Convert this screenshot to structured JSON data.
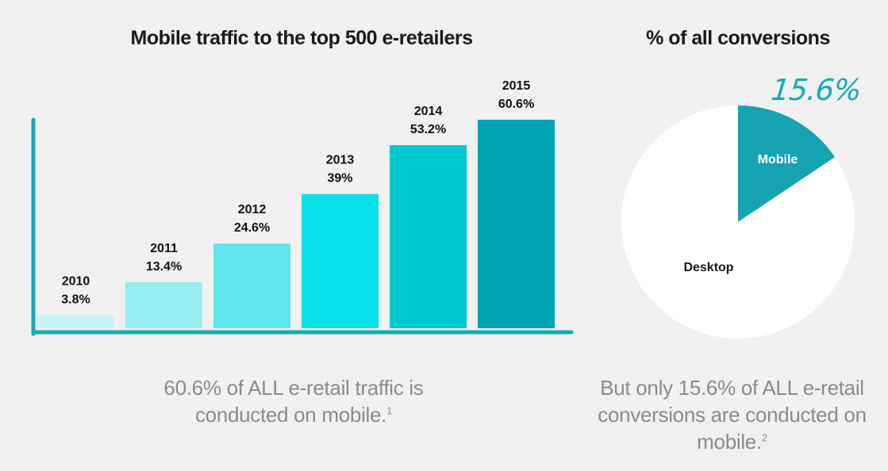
{
  "chart_data": [
    {
      "type": "bar",
      "title": "Mobile traffic to the top 500 e-retailers",
      "categories": [
        "2010",
        "2011",
        "2012",
        "2013",
        "2014",
        "2015"
      ],
      "values": [
        3.8,
        13.4,
        24.6,
        39,
        53.2,
        60.6
      ],
      "value_labels": [
        "3.8%",
        "13.4%",
        "24.6%",
        "39%",
        "53.2%",
        "60.6%"
      ],
      "colors": [
        "#c6f4f6",
        "#97eef3",
        "#5ee6ec",
        "#09e1ea",
        "#00c8d2",
        "#00a4b3"
      ],
      "ylim": [
        0,
        60.6
      ],
      "grid": false,
      "caption": "60.6% of ALL e-retail traffic is conducted on mobile.",
      "caption_footnote": "1"
    },
    {
      "type": "pie",
      "title": "% of all conversions",
      "slices": [
        {
          "label": "Mobile",
          "value": 15.6,
          "color": "#16a3b2"
        },
        {
          "label": "Desktop",
          "value": 84.4,
          "color": "#ffffff"
        }
      ],
      "callout": "15.6%",
      "caption": "But only 15.6% of ALL e-retail conversions are conducted on mobile.",
      "caption_footnote": "2"
    }
  ],
  "axis_color": "#16aab9"
}
